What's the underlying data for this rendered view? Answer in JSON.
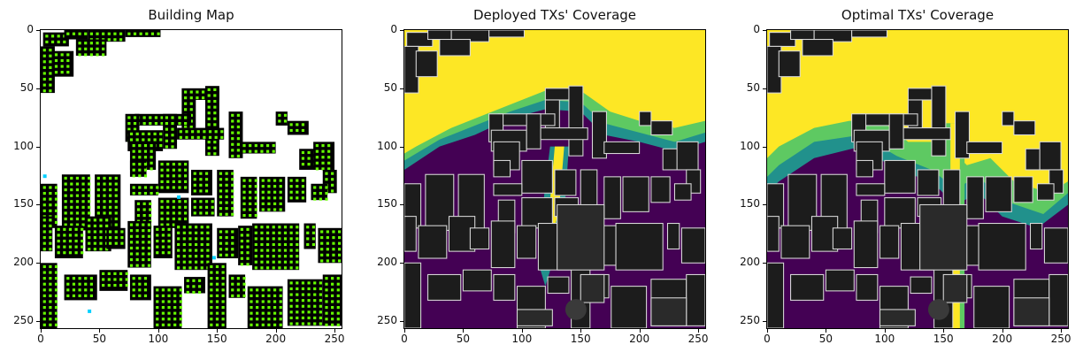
{
  "panels": [
    {
      "title": "Building Map",
      "type": "building_map",
      "x_ticks": [
        "0",
        "50",
        "100",
        "150",
        "200",
        "250"
      ],
      "y_ticks": [
        "0",
        "50",
        "100",
        "150",
        "200",
        "250"
      ]
    },
    {
      "title": "Deployed TXs' Coverage",
      "type": "coverage_deployed",
      "x_ticks": [
        "0",
        "50",
        "100",
        "150",
        "200",
        "250"
      ],
      "y_ticks": [
        "0",
        "50",
        "100",
        "150",
        "200",
        "250"
      ]
    },
    {
      "title": "Optimal TXs' Coverage",
      "type": "coverage_optimal",
      "x_ticks": [
        "0",
        "50",
        "100",
        "150",
        "200",
        "250"
      ],
      "y_ticks": [
        "0",
        "50",
        "100",
        "150",
        "200",
        "250"
      ]
    }
  ],
  "axis_range": [
    0,
    255
  ],
  "colors": {
    "building": "#000000",
    "building_dark_gray": "#1c1c1c",
    "building_outline": "#d9d9d9",
    "tx_marker": "#66ff00",
    "tx_marker_alt": "#00d0ff",
    "coverage_high": "#fde725",
    "coverage_mid_high": "#5ec962",
    "coverage_mid": "#21918c",
    "coverage_low": "#440154"
  }
}
